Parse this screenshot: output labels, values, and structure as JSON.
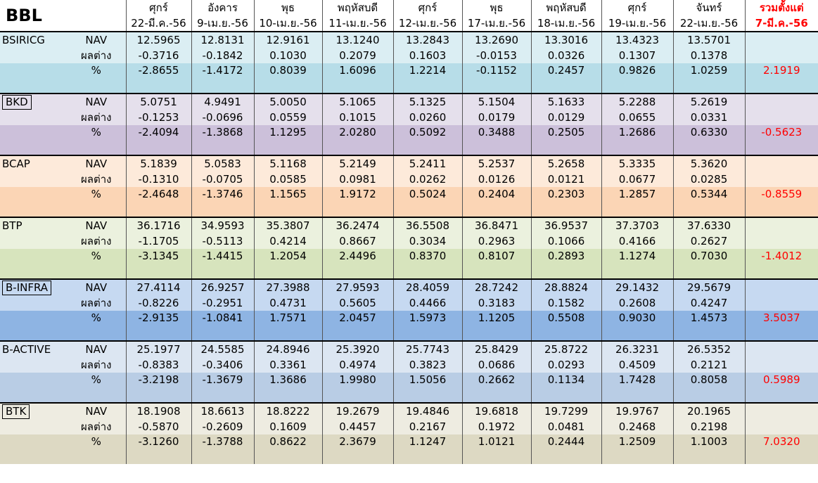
{
  "title": "BBL",
  "header": {
    "days": [
      "ศุกร์",
      "อังคาร",
      "พุธ",
      "พฤหัสบดี",
      "ศุกร์",
      "พุธ",
      "พฤหัสบดี",
      "ศุกร์",
      "จันทร์"
    ],
    "dates": [
      "22-มี.ค.-56",
      "9-เม.ย.-56",
      "10-เม.ย.-56",
      "11-เม.ย.-56",
      "12-เม.ย.-56",
      "17-เม.ย.-56",
      "18-เม.ย.-56",
      "19-เม.ย.-56",
      "22-เม.ย.-56"
    ],
    "total_line1": "รวมตั้งแต่",
    "total_line2": "7-มี.ค.-56"
  },
  "row_labels": {
    "nav": "NAV",
    "diff": "ผลต่าง",
    "pct": "%"
  },
  "colors": {
    "BSIRICG": {
      "light": "#dbeef3",
      "dark": "#b7dde8"
    },
    "BKD": {
      "light": "#e5e0ec",
      "dark": "#ccc0da"
    },
    "BCAP": {
      "light": "#fdeada",
      "dark": "#fbd5b5"
    },
    "BTP": {
      "light": "#ebf1de",
      "dark": "#d7e4bd"
    },
    "B-INFRA": {
      "light": "#c6d9f1",
      "dark": "#8eb4e3"
    },
    "B-ACTIVE": {
      "light": "#dce6f2",
      "dark": "#b9cde5"
    },
    "BTK": {
      "light": "#eeece1",
      "dark": "#ddd9c3"
    },
    "total_text": "#ff0000"
  },
  "funds": [
    {
      "name": "BSIRICG",
      "boxed": false,
      "nav": [
        "12.5965",
        "12.8131",
        "12.9161",
        "13.1240",
        "13.2843",
        "13.2690",
        "13.3016",
        "13.4323",
        "13.5701"
      ],
      "diff": [
        "-0.3716",
        "-0.1842",
        "0.1030",
        "0.2079",
        "0.1603",
        "-0.0153",
        "0.0326",
        "0.1307",
        "0.1378"
      ],
      "pct": [
        "-2.8655",
        "-1.4172",
        "0.8039",
        "1.6096",
        "1.2214",
        "-0.1152",
        "0.2457",
        "0.9826",
        "1.0259"
      ],
      "total": "2.1919"
    },
    {
      "name": "BKD",
      "boxed": true,
      "nav": [
        "5.0751",
        "4.9491",
        "5.0050",
        "5.1065",
        "5.1325",
        "5.1504",
        "5.1633",
        "5.2288",
        "5.2619"
      ],
      "diff": [
        "-0.1253",
        "-0.0696",
        "0.0559",
        "0.1015",
        "0.0260",
        "0.0179",
        "0.0129",
        "0.0655",
        "0.0331"
      ],
      "pct": [
        "-2.4094",
        "-1.3868",
        "1.1295",
        "2.0280",
        "0.5092",
        "0.3488",
        "0.2505",
        "1.2686",
        "0.6330"
      ],
      "total": "-0.5623"
    },
    {
      "name": "BCAP",
      "boxed": false,
      "nav": [
        "5.1839",
        "5.0583",
        "5.1168",
        "5.2149",
        "5.2411",
        "5.2537",
        "5.2658",
        "5.3335",
        "5.3620"
      ],
      "diff": [
        "-0.1310",
        "-0.0705",
        "0.0585",
        "0.0981",
        "0.0262",
        "0.0126",
        "0.0121",
        "0.0677",
        "0.0285"
      ],
      "pct": [
        "-2.4648",
        "-1.3746",
        "1.1565",
        "1.9172",
        "0.5024",
        "0.2404",
        "0.2303",
        "1.2857",
        "0.5344"
      ],
      "total": "-0.8559"
    },
    {
      "name": "BTP",
      "boxed": false,
      "nav": [
        "36.1716",
        "34.9593",
        "35.3807",
        "36.2474",
        "36.5508",
        "36.8471",
        "36.9537",
        "37.3703",
        "37.6330"
      ],
      "diff": [
        "-1.1705",
        "-0.5113",
        "0.4214",
        "0.8667",
        "0.3034",
        "0.2963",
        "0.1066",
        "0.4166",
        "0.2627"
      ],
      "pct": [
        "-3.1345",
        "-1.4415",
        "1.2054",
        "2.4496",
        "0.8370",
        "0.8107",
        "0.2893",
        "1.1274",
        "0.7030"
      ],
      "total": "-1.4012"
    },
    {
      "name": "B-INFRA",
      "boxed": true,
      "nav": [
        "27.4114",
        "26.9257",
        "27.3988",
        "27.9593",
        "28.4059",
        "28.7242",
        "28.8824",
        "29.1432",
        "29.5679"
      ],
      "diff": [
        "-0.8226",
        "-0.2951",
        "0.4731",
        "0.5605",
        "0.4466",
        "0.3183",
        "0.1582",
        "0.2608",
        "0.4247"
      ],
      "pct": [
        "-2.9135",
        "-1.0841",
        "1.7571",
        "2.0457",
        "1.5973",
        "1.1205",
        "0.5508",
        "0.9030",
        "1.4573"
      ],
      "total": "3.5037"
    },
    {
      "name": "B-ACTIVE",
      "boxed": false,
      "nav": [
        "25.1977",
        "24.5585",
        "24.8946",
        "25.3920",
        "25.7743",
        "25.8429",
        "25.8722",
        "26.3231",
        "26.5352"
      ],
      "diff": [
        "-0.8383",
        "-0.3406",
        "0.3361",
        "0.4974",
        "0.3823",
        "0.0686",
        "0.0293",
        "0.4509",
        "0.2121"
      ],
      "pct": [
        "-3.2198",
        "-1.3679",
        "1.3686",
        "1.9980",
        "1.5056",
        "0.2662",
        "0.1134",
        "1.7428",
        "0.8058"
      ],
      "total": "0.5989"
    },
    {
      "name": "BTK",
      "boxed": true,
      "nav": [
        "18.1908",
        "18.6613",
        "18.8222",
        "19.2679",
        "19.4846",
        "19.6818",
        "19.7299",
        "19.9767",
        "20.1965"
      ],
      "diff": [
        "-0.5870",
        "-0.2609",
        "0.1609",
        "0.4457",
        "0.2167",
        "0.1972",
        "0.0481",
        "0.2468",
        "0.2198"
      ],
      "pct": [
        "-3.1260",
        "-1.3788",
        "0.8622",
        "2.3679",
        "1.1247",
        "1.0121",
        "0.2444",
        "1.2509",
        "1.1003"
      ],
      "total": "7.0320"
    }
  ]
}
